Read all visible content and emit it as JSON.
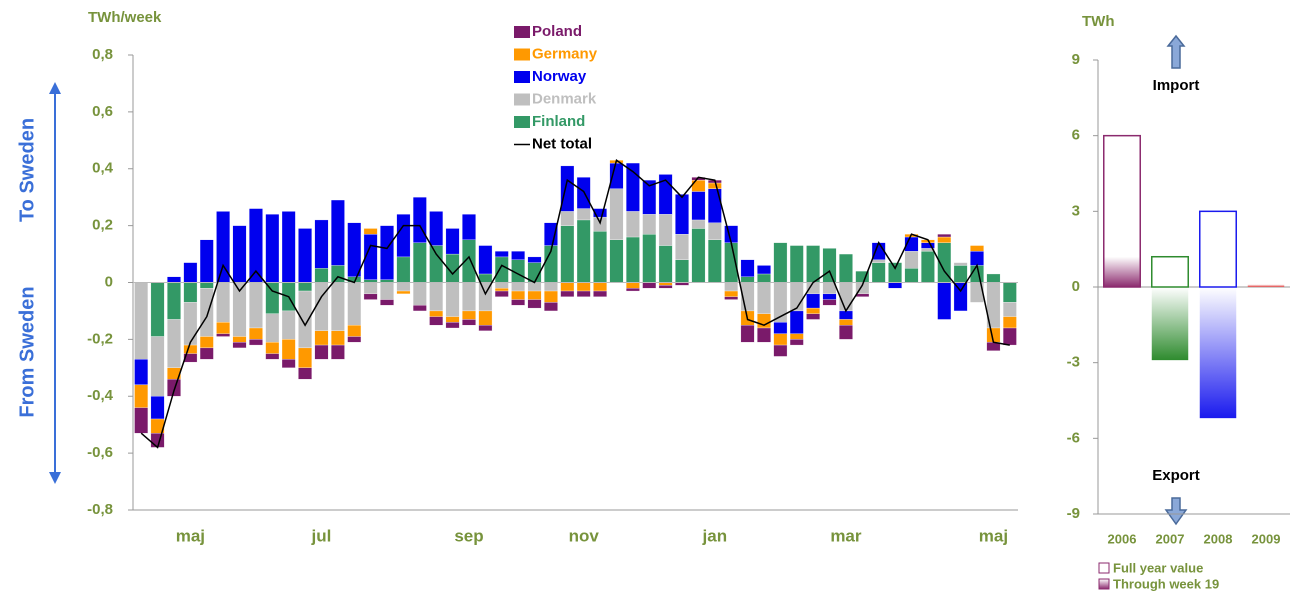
{
  "chart_data": [
    {
      "type": "bar",
      "stacked": true,
      "y_label": "TWh/week",
      "annotations": [
        "To Sweden",
        "From Sweden"
      ],
      "categories": [
        null,
        null,
        null,
        "maj",
        null,
        null,
        null,
        null,
        null,
        null,
        null,
        "jul",
        null,
        null,
        null,
        null,
        null,
        null,
        null,
        null,
        "sep",
        null,
        null,
        null,
        null,
        null,
        null,
        "nov",
        null,
        null,
        null,
        null,
        null,
        null,
        null,
        "jan",
        null,
        null,
        null,
        null,
        null,
        null,
        null,
        "mar",
        null,
        null,
        null,
        null,
        null,
        null,
        null,
        null,
        "maj",
        null
      ],
      "ylim": [
        -0.8,
        0.8
      ],
      "yticks": [
        {
          "value": -0.8,
          "label": "-0,8"
        },
        {
          "value": -0.6,
          "label": "-0,6"
        },
        {
          "value": -0.4,
          "label": "-0,4"
        },
        {
          "value": -0.2,
          "label": "-0,2"
        },
        0,
        {
          "value": 0.2,
          "label": "0,2"
        },
        {
          "value": 0.4,
          "label": "0,4"
        },
        {
          "value": 0.6,
          "label": "0,6"
        },
        {
          "value": 0.8,
          "label": "0,8"
        }
      ],
      "series": [
        {
          "name": "Finland",
          "color": "#339966",
          "values": [
            0,
            -0.19,
            -0.13,
            -0.07,
            -0.02,
            0,
            0,
            0,
            -0.11,
            -0.1,
            -0.03,
            0.05,
            0.06,
            0.02,
            0.01,
            0.01,
            0.09,
            0.14,
            0.13,
            0.1,
            0.15,
            0.03,
            0.09,
            0.08,
            0.07,
            0.13,
            0.2,
            0.22,
            0.18,
            0.15,
            0.16,
            0.17,
            0.13,
            0.08,
            0.19,
            0.15,
            0.14,
            0.02,
            0.03,
            0.14,
            0.13,
            0.13,
            0.12,
            0.1,
            0.04,
            0.07,
            0.07,
            0.05,
            0.11,
            0.14,
            0.06,
            0.06,
            0.03,
            -0.07
          ]
        },
        {
          "name": "Denmark",
          "color": "#bfbfbf",
          "values": [
            -0.27,
            -0.21,
            -0.17,
            -0.15,
            -0.17,
            -0.14,
            -0.19,
            -0.16,
            -0.1,
            -0.1,
            -0.2,
            -0.17,
            -0.17,
            -0.15,
            -0.04,
            -0.06,
            -0.03,
            -0.08,
            -0.1,
            -0.12,
            -0.1,
            -0.1,
            -0.02,
            -0.03,
            -0.03,
            -0.03,
            0.05,
            0.04,
            0.05,
            0.18,
            0.09,
            0.07,
            0.11,
            0.09,
            0.03,
            0.06,
            -0.03,
            -0.1,
            -0.11,
            -0.14,
            -0.1,
            -0.04,
            -0.04,
            -0.1,
            -0.04,
            0.01,
            0,
            0.06,
            0.01,
            0,
            0.01,
            -0.07,
            -0.16,
            -0.05
          ]
        },
        {
          "name": "Norway",
          "color": "#0000ee",
          "values": [
            -0.09,
            -0.08,
            0.02,
            0.07,
            0.15,
            0.25,
            0.2,
            0.26,
            0.24,
            0.25,
            0.19,
            0.17,
            0.23,
            0.19,
            0.16,
            0.19,
            0.15,
            0.16,
            0.12,
            0.09,
            0.09,
            0.1,
            0.02,
            0.03,
            0.02,
            0.08,
            0.16,
            0.11,
            0.03,
            0.09,
            0.17,
            0.12,
            0.14,
            0.14,
            0.1,
            0.12,
            0.06,
            0.06,
            0.03,
            -0.04,
            -0.08,
            -0.05,
            -0.02,
            -0.03,
            0,
            0.06,
            -0.02,
            0.05,
            0.02,
            -0.13,
            -0.1,
            0.05,
            0,
            0
          ]
        },
        {
          "name": "Germany",
          "color": "#ff9900",
          "values": [
            -0.08,
            -0.05,
            -0.04,
            -0.03,
            -0.04,
            -0.04,
            -0.02,
            -0.04,
            -0.04,
            -0.07,
            -0.07,
            -0.05,
            -0.05,
            -0.04,
            0.02,
            0,
            -0.01,
            0,
            -0.02,
            -0.02,
            -0.03,
            -0.05,
            -0.01,
            -0.03,
            -0.03,
            -0.04,
            -0.03,
            -0.03,
            -0.03,
            0.01,
            -0.02,
            0,
            -0.01,
            0,
            0.04,
            0.02,
            -0.02,
            -0.05,
            -0.05,
            -0.04,
            -0.02,
            -0.02,
            0,
            -0.02,
            0,
            0,
            0,
            0.01,
            0.01,
            0.02,
            0,
            0.02,
            -0.05,
            -0.04
          ]
        },
        {
          "name": "Poland",
          "color": "#7a1a6a",
          "values": [
            -0.09,
            -0.05,
            -0.06,
            -0.03,
            -0.04,
            -0.01,
            -0.02,
            -0.02,
            -0.02,
            -0.03,
            -0.04,
            -0.05,
            -0.05,
            -0.02,
            -0.02,
            -0.02,
            0,
            -0.02,
            -0.03,
            -0.02,
            -0.02,
            -0.02,
            -0.02,
            -0.02,
            -0.03,
            -0.03,
            -0.02,
            -0.02,
            -0.02,
            0,
            -0.01,
            -0.02,
            -0.01,
            -0.01,
            0.01,
            0.01,
            -0.01,
            -0.06,
            -0.05,
            -0.04,
            -0.02,
            -0.02,
            -0.02,
            -0.05,
            -0.01,
            0,
            0,
            0,
            0,
            0.01,
            0,
            0,
            -0.03,
            -0.06
          ]
        }
      ],
      "line": {
        "name": "Net total",
        "color": "#000000",
        "values": [
          -0.53,
          -0.58,
          -0.38,
          -0.21,
          -0.12,
          0.06,
          -0.03,
          0.04,
          -0.03,
          -0.05,
          -0.15,
          -0.05,
          0.02,
          0,
          0.13,
          0.12,
          0.2,
          0.2,
          0.1,
          0.03,
          0.09,
          -0.04,
          0.06,
          0.03,
          0,
          0.11,
          0.36,
          0.32,
          0.21,
          0.43,
          0.39,
          0.34,
          0.36,
          0.3,
          0.37,
          0.36,
          0.14,
          -0.13,
          -0.15,
          -0.12,
          -0.09,
          0,
          0.04,
          -0.1,
          -0.01,
          0.14,
          0.05,
          0.17,
          0.15,
          0.04,
          -0.03,
          0.06,
          -0.21,
          -0.22
        ]
      }
    },
    {
      "type": "bar",
      "y_label": "TWh",
      "annotations": [
        "Import",
        "Export"
      ],
      "categories": [
        "2006",
        "2007",
        "2008",
        "2009"
      ],
      "colors": [
        "#8b2a6e",
        "#2e8b2e",
        "#1a1aee",
        "#e04040"
      ],
      "ylim": [
        -9,
        9
      ],
      "yticks": [
        -9,
        -6,
        -3,
        0,
        3,
        6,
        9
      ],
      "series": [
        {
          "name": "Full year value",
          "values": [
            6.0,
            1.2,
            3.0,
            null
          ]
        },
        {
          "name": "Through week 19",
          "values": [
            1.2,
            -2.9,
            -5.2,
            0.1
          ]
        }
      ]
    }
  ]
}
